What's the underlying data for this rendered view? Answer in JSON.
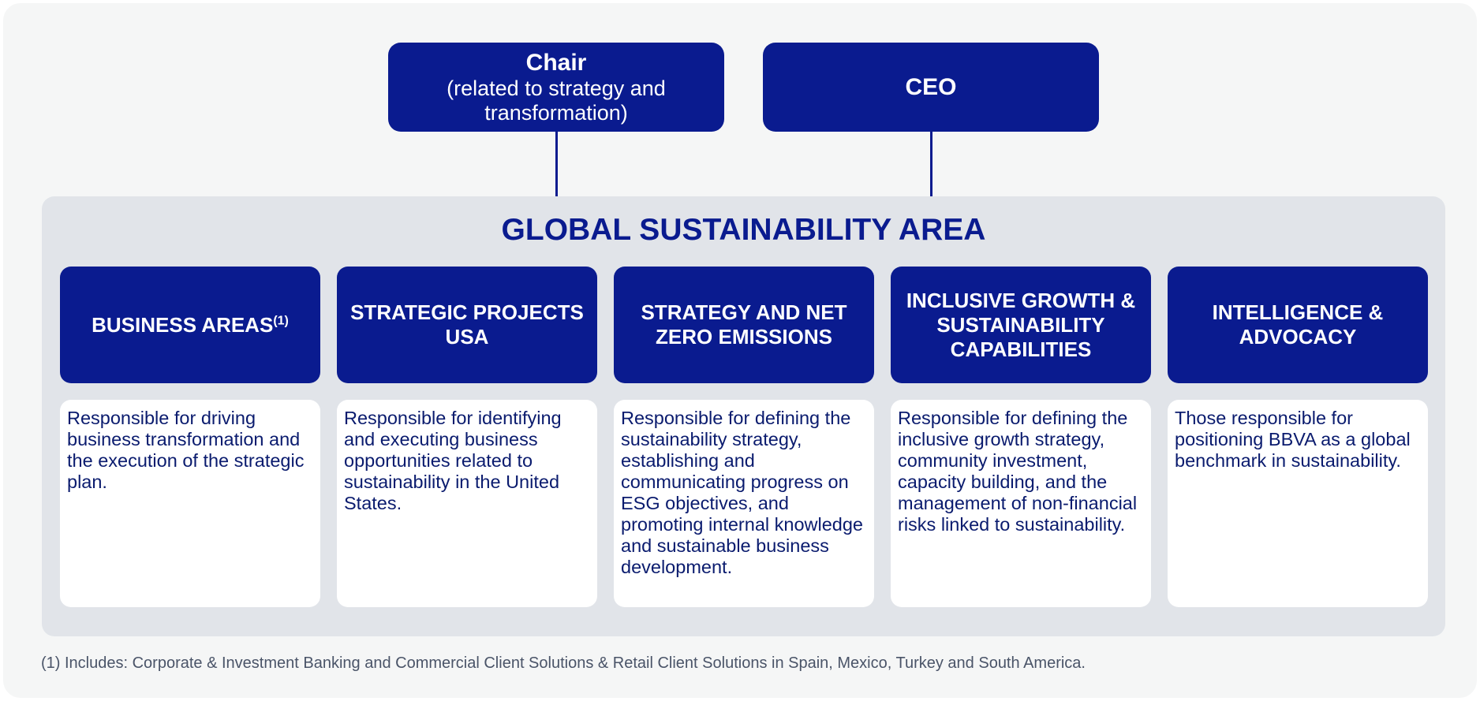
{
  "top": {
    "chair": {
      "title": "Chair",
      "subtitle": "(related to strategy and transformation)"
    },
    "ceo": {
      "title": "CEO"
    }
  },
  "area": {
    "title": "GLOBAL SUSTAINABILITY AREA",
    "columns": [
      {
        "heading": "BUSINESS AREAS",
        "superscript": "(1)",
        "description": "Responsible for driving business transformation and the execution of the strategic plan."
      },
      {
        "heading": "STRATEGIC PROJECTS USA",
        "description": "Responsible for identifying and executing business opportunities related to sustainability in the United States."
      },
      {
        "heading": "STRATEGY AND NET ZERO EMISSIONS",
        "description": "Responsible for defining the sustainability strategy, establishing and communicating progress on ESG objectives, and promoting internal knowledge and sustainable business development."
      },
      {
        "heading": "INCLUSIVE GROWTH & SUSTAINABILITY CAPABILITIES",
        "description": "Responsible for defining the inclusive growth strategy, community investment, capacity building, and the management of non-financial risks linked to sustainability."
      },
      {
        "heading": "INTELLIGENCE & ADVOCACY",
        "description": "Those responsible for positioning BBVA as a global benchmark in sustainability."
      }
    ]
  },
  "footnote": "(1) Includes: Corporate & Investment Banking and Commercial Client Solutions & Retail Client Solutions in Spain, Mexico, Turkey and South America.",
  "colors": {
    "navy": "#0a1b8f",
    "panel": "#e1e4e9",
    "background": "#f5f6f6"
  }
}
